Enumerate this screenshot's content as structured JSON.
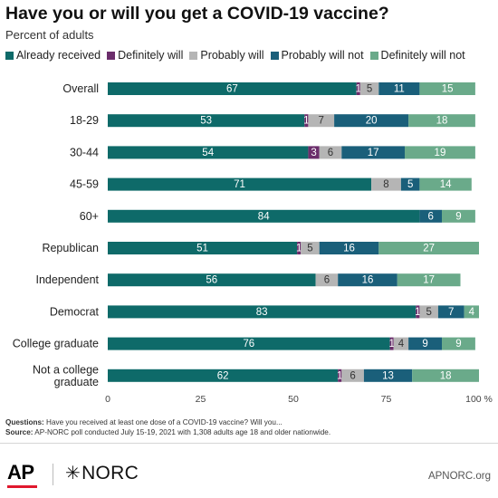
{
  "title": "Have you or will you get a COVID-19 vaccine?",
  "subtitle": "Percent of adults",
  "colors": {
    "Already received": "#0e6a69",
    "Definitely will": "#6b2d6b",
    "Probably will": "#b5b5b5",
    "Probably will not": "#1a5f7a",
    "Definitely will not": "#6aaa8a"
  },
  "chart_data": {
    "type": "bar",
    "orientation": "horizontal",
    "stacked": true,
    "categories": [
      "Overall",
      "18-29",
      "30-44",
      "45-59",
      "60+",
      "Republican",
      "Independent",
      "Democrat",
      "College graduate",
      "Not a college graduate"
    ],
    "series": [
      {
        "name": "Already received",
        "values": [
          67,
          53,
          54,
          71,
          84,
          51,
          56,
          83,
          76,
          62
        ]
      },
      {
        "name": "Definitely will",
        "values": [
          1,
          1,
          3,
          null,
          null,
          1,
          null,
          1,
          1,
          1
        ]
      },
      {
        "name": "Probably will",
        "values": [
          5,
          7,
          6,
          8,
          null,
          5,
          6,
          5,
          4,
          6
        ]
      },
      {
        "name": "Probably will not",
        "values": [
          11,
          20,
          17,
          5,
          6,
          16,
          16,
          7,
          9,
          13
        ]
      },
      {
        "name": "Definitely will not",
        "values": [
          15,
          18,
          19,
          14,
          9,
          27,
          17,
          4,
          9,
          18
        ]
      }
    ],
    "xlim": [
      0,
      100
    ],
    "xticks": [
      "0",
      "25",
      "50",
      "75",
      "100 %"
    ],
    "legend": "top",
    "grid": false
  },
  "notes": {
    "questions_label": "Questions:",
    "questions_text": " Have you received at least one dose of a COVID-19 vaccine? Will you...",
    "source_label": "Source:",
    "source_text": " AP-NORC poll conducted July 15-19, 2021 with 1,308 adults age 18 and older nationwide."
  },
  "footer": {
    "ap": "AP",
    "norc_star": "✳",
    "norc": "NORC",
    "site": "APNORC.org"
  }
}
